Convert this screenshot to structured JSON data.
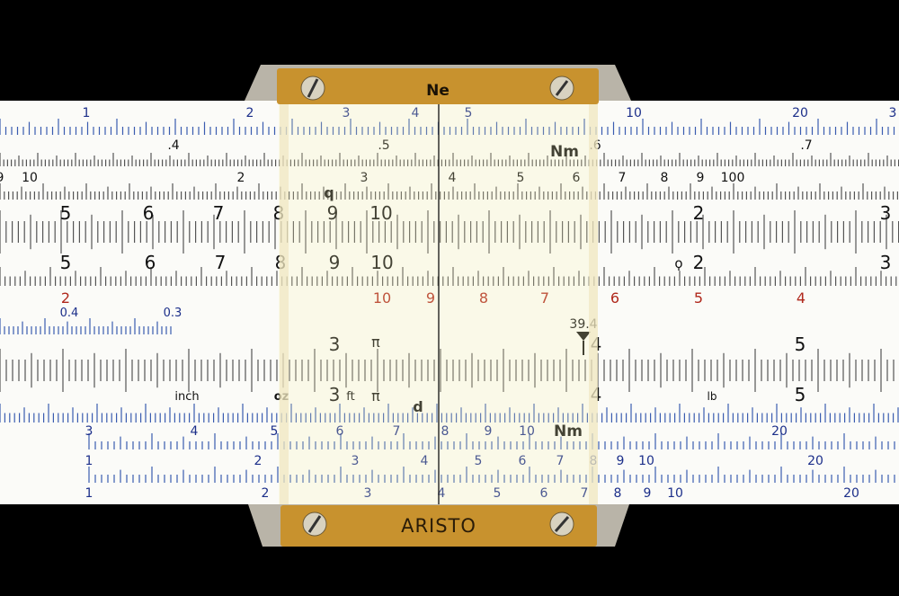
{
  "cursor": {
    "top_label": "Ne",
    "bottom_label": "ARISTO"
  },
  "colors": {
    "blue": "#1c2f8a",
    "black": "#111111",
    "red": "#b0281c",
    "tick_blue": "#3a5cb0",
    "tick_gray": "#555555",
    "brass": "#c8922e",
    "steel": "#b9b4a8"
  },
  "rows": [
    {
      "color": "blue",
      "labels": [
        "1",
        "2",
        "3",
        "4",
        "5",
        "10",
        "20",
        "3"
      ]
    },
    {
      "color": "black",
      "labels": [
        ".4",
        ".5",
        "Nm",
        ".6",
        ".7"
      ]
    },
    {
      "color": "black",
      "labels": [
        "9",
        "10",
        "2",
        "3",
        "q",
        "4",
        "5",
        "6",
        "7",
        "8",
        "9",
        "100"
      ]
    },
    {
      "color": "black",
      "labels": [
        "5",
        "6",
        "7",
        "8",
        "9",
        "10",
        "2",
        "3"
      ]
    },
    {
      "color": "black",
      "labels": [
        "5",
        "6",
        "7",
        "8",
        "9",
        "10",
        "ϙ",
        "2",
        "3"
      ]
    },
    {
      "color": "red",
      "labels": [
        "2",
        "10",
        "9",
        "8",
        "7",
        "6",
        "5",
        "4"
      ]
    },
    {
      "color": "blue",
      "labels": [
        "0.4",
        "0.3"
      ]
    },
    {
      "color": "black",
      "labels": [
        "39.4",
        "3",
        "π",
        "4",
        "5"
      ]
    },
    {
      "color": "black",
      "labels": [
        "inch",
        "oz",
        "3",
        "ft",
        "π",
        "4",
        "lb",
        "5",
        "d"
      ]
    },
    {
      "color": "blue",
      "labels": [
        "3",
        "4",
        "5",
        "6",
        "7",
        "8",
        "9",
        "10",
        "Nm",
        "20"
      ]
    },
    {
      "color": "blue",
      "labels": [
        "1",
        "2",
        "3",
        "4",
        "5",
        "6",
        "7",
        "8",
        "9",
        "10",
        "20"
      ]
    },
    {
      "color": "blue",
      "labels": [
        "1",
        "2",
        "3",
        "4",
        "5",
        "6",
        "7",
        "8",
        "9",
        "10",
        "20"
      ]
    }
  ]
}
